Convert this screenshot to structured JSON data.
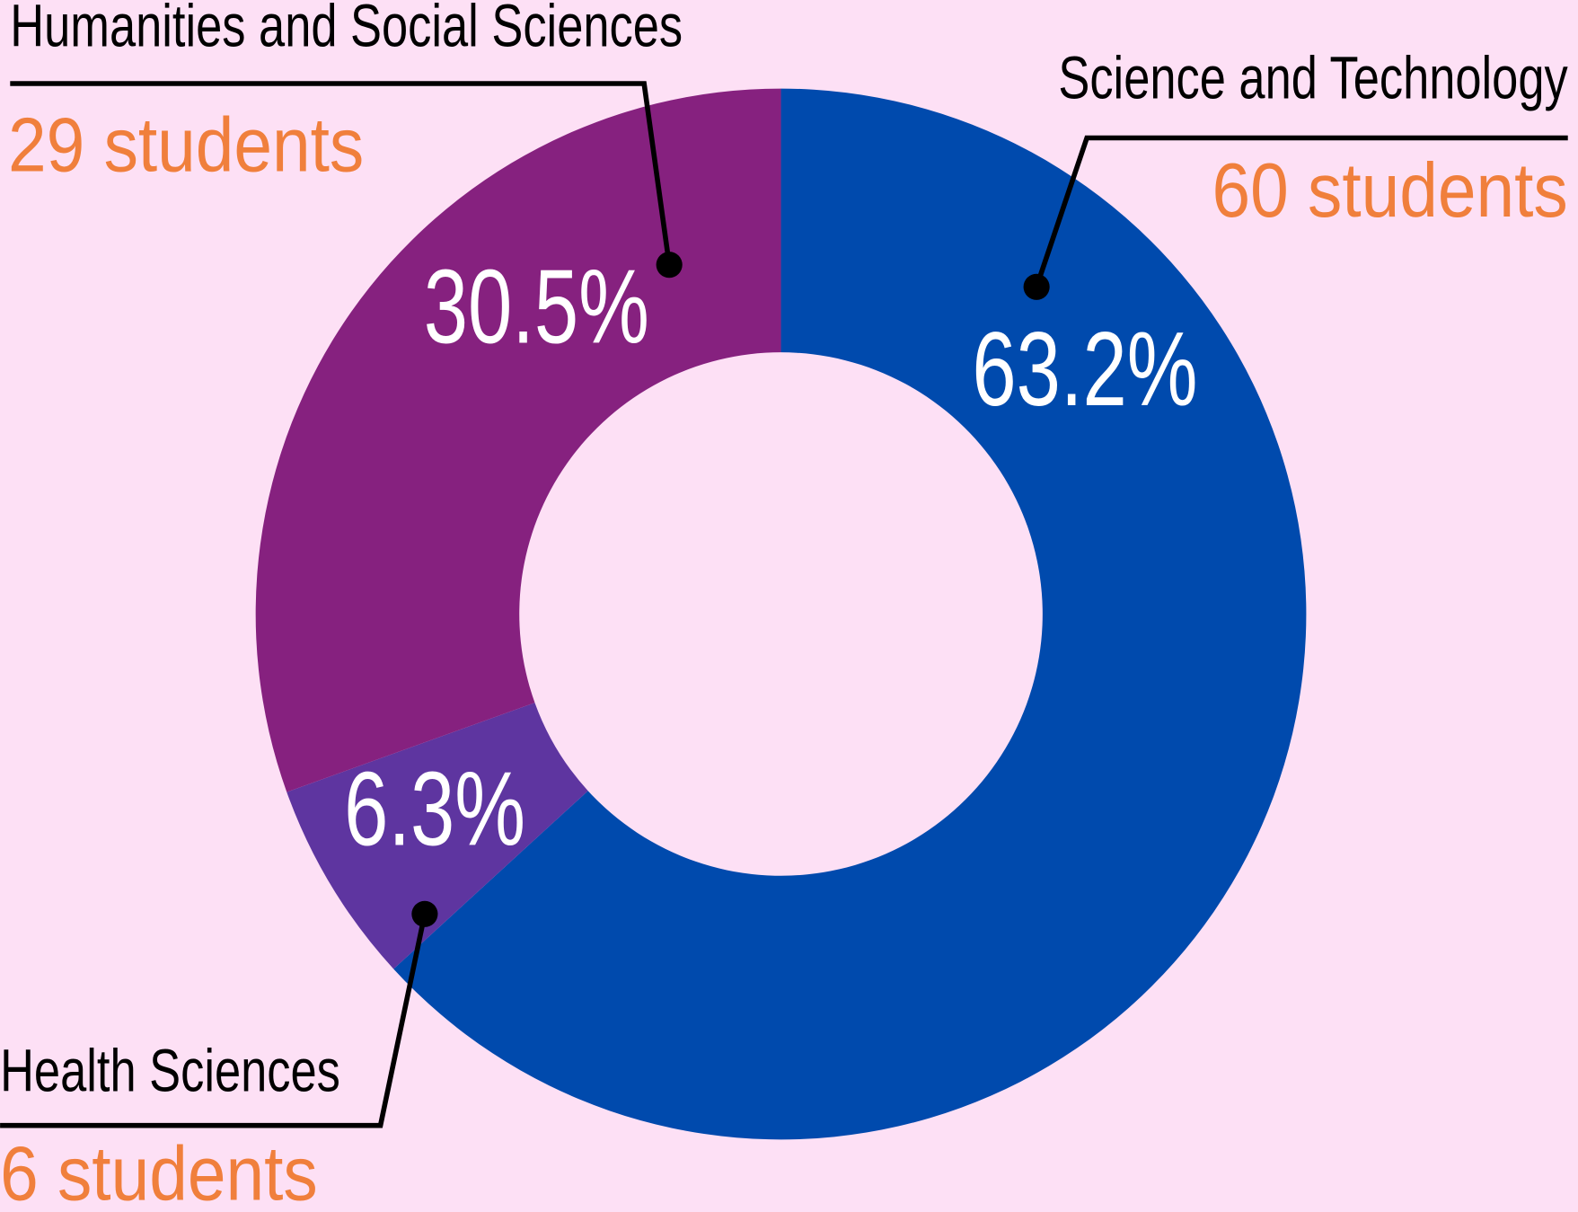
{
  "chart_data": {
    "type": "donut",
    "categories": [
      "Science and Technology",
      "Health Sciences",
      "Humanities and Social Sciences"
    ],
    "values": [
      63.2,
      6.3,
      30.5
    ],
    "value_labels": [
      "63.2%",
      "6.3%",
      "30.5%"
    ],
    "count_labels": [
      "60 students",
      "6 students",
      "29 students"
    ],
    "colors": [
      "#004aad",
      "#5e35a0",
      "#86217f"
    ]
  }
}
